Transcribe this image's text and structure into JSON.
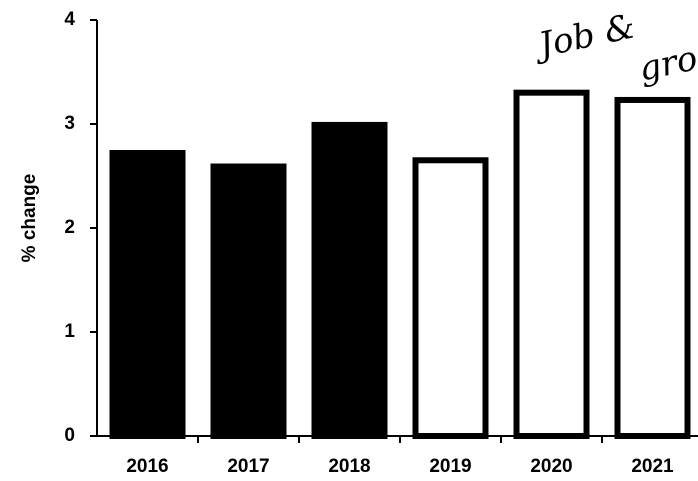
{
  "chart_data": {
    "type": "bar",
    "y_label": "% change",
    "categories": [
      "2016",
      "2017",
      "2018",
      "2019",
      "2020",
      "2021"
    ],
    "values": [
      2.75,
      2.62,
      3.02,
      2.68,
      3.33,
      3.26
    ],
    "colors": [
      "#000000",
      "#000000",
      "#000000",
      "#ffffff",
      "#ffffff",
      "#ffffff"
    ],
    "ylim": [
      0,
      4
    ],
    "yticks": [
      0,
      1,
      2,
      3,
      4
    ],
    "annotations": [
      "Job &",
      "gro"
    ]
  }
}
